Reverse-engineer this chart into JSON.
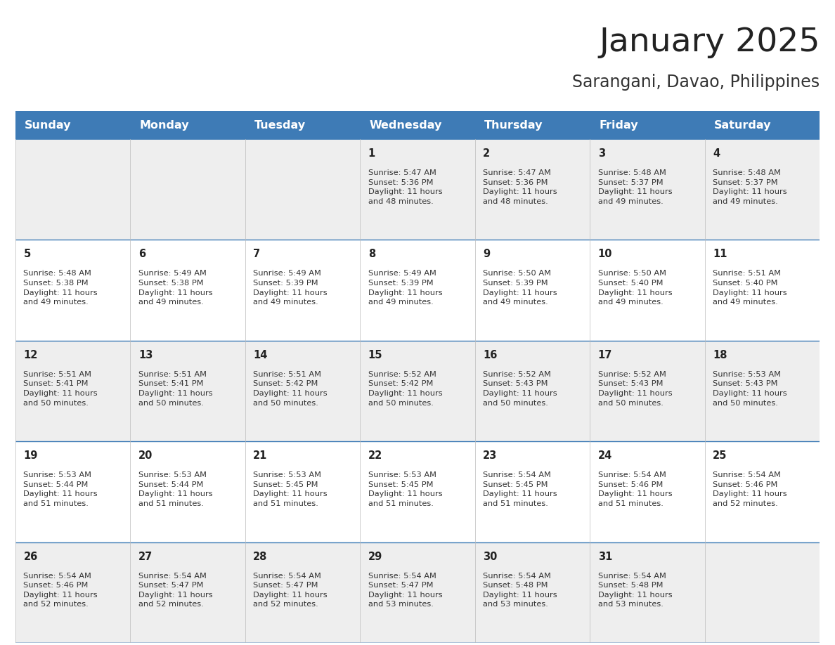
{
  "title": "January 2025",
  "subtitle": "Sarangani, Davao, Philippines",
  "days_of_week": [
    "Sunday",
    "Monday",
    "Tuesday",
    "Wednesday",
    "Thursday",
    "Friday",
    "Saturday"
  ],
  "header_bg_color": "#3E7BB6",
  "header_text_color": "#FFFFFF",
  "cell_bg_color_even": "#EEEEEE",
  "cell_bg_color_odd": "#FFFFFF",
  "cell_border_color": "#3E7BB6",
  "day_number_color": "#222222",
  "cell_text_color": "#333333",
  "title_color": "#222222",
  "subtitle_color": "#333333",
  "logo_general_color": "#222222",
  "logo_blue_color": "#2E75B6",
  "calendar_data": [
    [
      null,
      null,
      null,
      {
        "day": 1,
        "sunrise": "5:47 AM",
        "sunset": "5:36 PM",
        "daylight_hours": 11,
        "daylight_minutes": 48
      },
      {
        "day": 2,
        "sunrise": "5:47 AM",
        "sunset": "5:36 PM",
        "daylight_hours": 11,
        "daylight_minutes": 48
      },
      {
        "day": 3,
        "sunrise": "5:48 AM",
        "sunset": "5:37 PM",
        "daylight_hours": 11,
        "daylight_minutes": 49
      },
      {
        "day": 4,
        "sunrise": "5:48 AM",
        "sunset": "5:37 PM",
        "daylight_hours": 11,
        "daylight_minutes": 49
      }
    ],
    [
      {
        "day": 5,
        "sunrise": "5:48 AM",
        "sunset": "5:38 PM",
        "daylight_hours": 11,
        "daylight_minutes": 49
      },
      {
        "day": 6,
        "sunrise": "5:49 AM",
        "sunset": "5:38 PM",
        "daylight_hours": 11,
        "daylight_minutes": 49
      },
      {
        "day": 7,
        "sunrise": "5:49 AM",
        "sunset": "5:39 PM",
        "daylight_hours": 11,
        "daylight_minutes": 49
      },
      {
        "day": 8,
        "sunrise": "5:49 AM",
        "sunset": "5:39 PM",
        "daylight_hours": 11,
        "daylight_minutes": 49
      },
      {
        "day": 9,
        "sunrise": "5:50 AM",
        "sunset": "5:39 PM",
        "daylight_hours": 11,
        "daylight_minutes": 49
      },
      {
        "day": 10,
        "sunrise": "5:50 AM",
        "sunset": "5:40 PM",
        "daylight_hours": 11,
        "daylight_minutes": 49
      },
      {
        "day": 11,
        "sunrise": "5:51 AM",
        "sunset": "5:40 PM",
        "daylight_hours": 11,
        "daylight_minutes": 49
      }
    ],
    [
      {
        "day": 12,
        "sunrise": "5:51 AM",
        "sunset": "5:41 PM",
        "daylight_hours": 11,
        "daylight_minutes": 50
      },
      {
        "day": 13,
        "sunrise": "5:51 AM",
        "sunset": "5:41 PM",
        "daylight_hours": 11,
        "daylight_minutes": 50
      },
      {
        "day": 14,
        "sunrise": "5:51 AM",
        "sunset": "5:42 PM",
        "daylight_hours": 11,
        "daylight_minutes": 50
      },
      {
        "day": 15,
        "sunrise": "5:52 AM",
        "sunset": "5:42 PM",
        "daylight_hours": 11,
        "daylight_minutes": 50
      },
      {
        "day": 16,
        "sunrise": "5:52 AM",
        "sunset": "5:43 PM",
        "daylight_hours": 11,
        "daylight_minutes": 50
      },
      {
        "day": 17,
        "sunrise": "5:52 AM",
        "sunset": "5:43 PM",
        "daylight_hours": 11,
        "daylight_minutes": 50
      },
      {
        "day": 18,
        "sunrise": "5:53 AM",
        "sunset": "5:43 PM",
        "daylight_hours": 11,
        "daylight_minutes": 50
      }
    ],
    [
      {
        "day": 19,
        "sunrise": "5:53 AM",
        "sunset": "5:44 PM",
        "daylight_hours": 11,
        "daylight_minutes": 51
      },
      {
        "day": 20,
        "sunrise": "5:53 AM",
        "sunset": "5:44 PM",
        "daylight_hours": 11,
        "daylight_minutes": 51
      },
      {
        "day": 21,
        "sunrise": "5:53 AM",
        "sunset": "5:45 PM",
        "daylight_hours": 11,
        "daylight_minutes": 51
      },
      {
        "day": 22,
        "sunrise": "5:53 AM",
        "sunset": "5:45 PM",
        "daylight_hours": 11,
        "daylight_minutes": 51
      },
      {
        "day": 23,
        "sunrise": "5:54 AM",
        "sunset": "5:45 PM",
        "daylight_hours": 11,
        "daylight_minutes": 51
      },
      {
        "day": 24,
        "sunrise": "5:54 AM",
        "sunset": "5:46 PM",
        "daylight_hours": 11,
        "daylight_minutes": 51
      },
      {
        "day": 25,
        "sunrise": "5:54 AM",
        "sunset": "5:46 PM",
        "daylight_hours": 11,
        "daylight_minutes": 52
      }
    ],
    [
      {
        "day": 26,
        "sunrise": "5:54 AM",
        "sunset": "5:46 PM",
        "daylight_hours": 11,
        "daylight_minutes": 52
      },
      {
        "day": 27,
        "sunrise": "5:54 AM",
        "sunset": "5:47 PM",
        "daylight_hours": 11,
        "daylight_minutes": 52
      },
      {
        "day": 28,
        "sunrise": "5:54 AM",
        "sunset": "5:47 PM",
        "daylight_hours": 11,
        "daylight_minutes": 52
      },
      {
        "day": 29,
        "sunrise": "5:54 AM",
        "sunset": "5:47 PM",
        "daylight_hours": 11,
        "daylight_minutes": 53
      },
      {
        "day": 30,
        "sunrise": "5:54 AM",
        "sunset": "5:48 PM",
        "daylight_hours": 11,
        "daylight_minutes": 53
      },
      {
        "day": 31,
        "sunrise": "5:54 AM",
        "sunset": "5:48 PM",
        "daylight_hours": 11,
        "daylight_minutes": 53
      },
      null
    ]
  ]
}
